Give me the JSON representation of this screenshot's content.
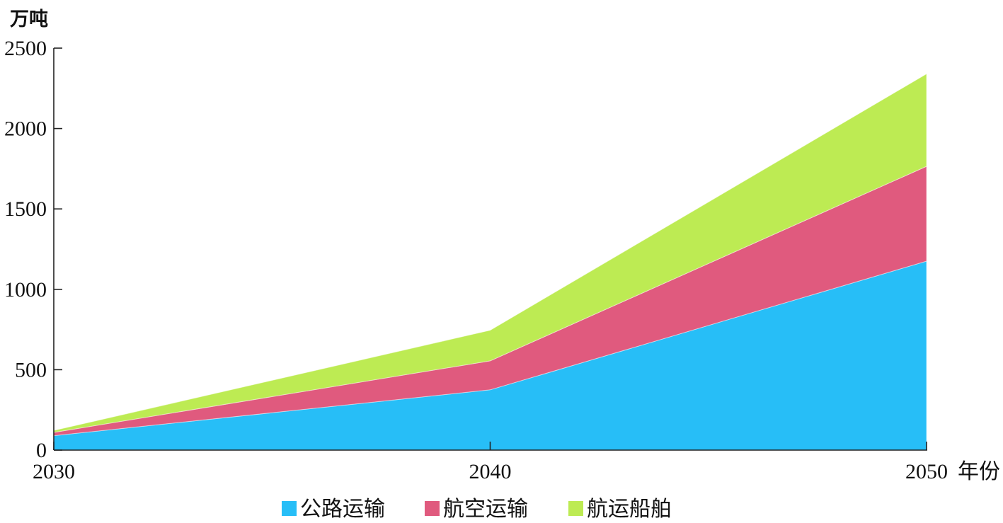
{
  "chart_data": {
    "type": "area",
    "stacked": true,
    "ylabel": "万吨",
    "xlabel": "年份",
    "x": [
      "2030",
      "2040",
      "2050"
    ],
    "ylim": [
      0,
      2500
    ],
    "yticks": [
      "0",
      "500",
      "1000",
      "1500",
      "2000",
      "2500"
    ],
    "grid": false,
    "legend_position": "bottom",
    "series": [
      {
        "name": "公路运输",
        "values": [
          90,
          375,
          1175
        ],
        "color": "#27BEF7"
      },
      {
        "name": "航空运输",
        "values": [
          20,
          180,
          590
        ],
        "color": "#E05A7E"
      },
      {
        "name": "航运船舶",
        "values": [
          12,
          190,
          575
        ],
        "color": "#BDEB53"
      }
    ]
  }
}
